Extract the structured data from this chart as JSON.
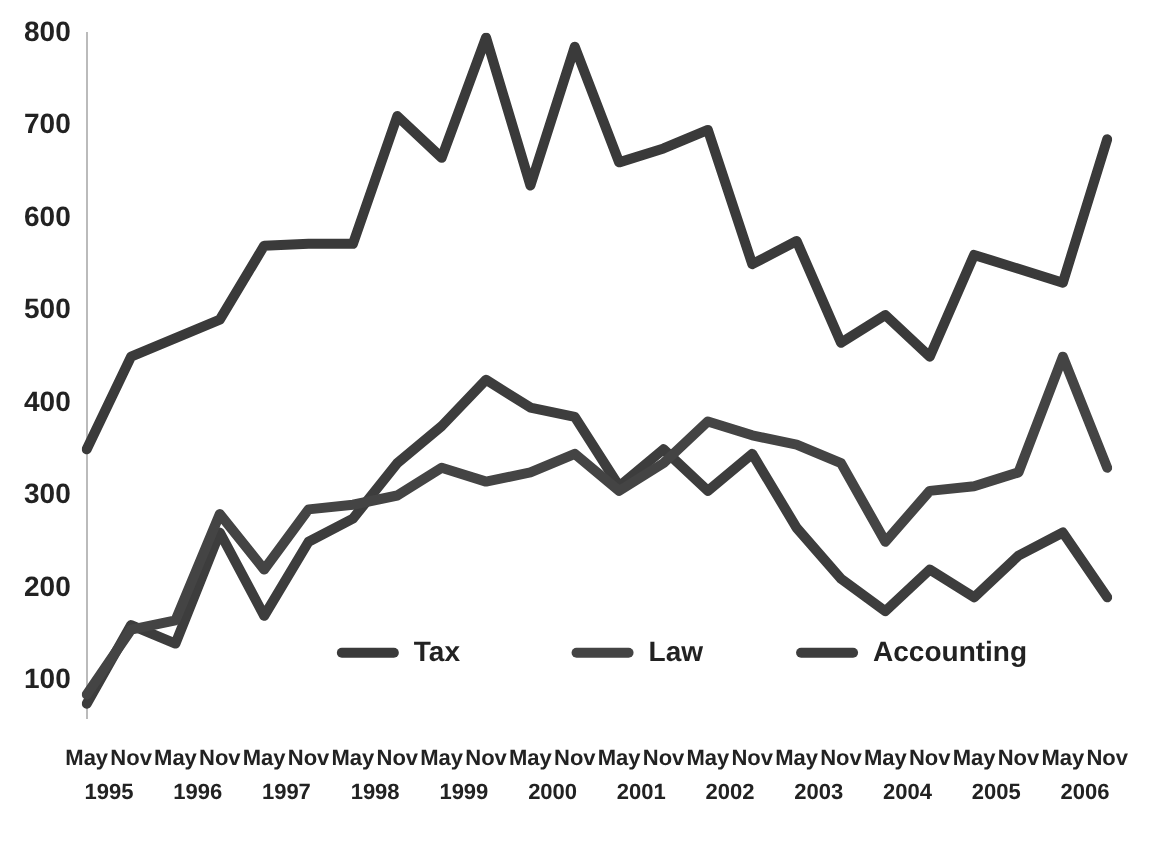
{
  "chart_data": {
    "type": "line",
    "categories": [
      "May",
      "Nov",
      "May",
      "Nov",
      "May",
      "Nov",
      "May",
      "Nov",
      "May",
      "Nov",
      "May",
      "Nov",
      "May",
      "Nov",
      "May",
      "Nov",
      "May",
      "Nov",
      "May",
      "Nov",
      "May",
      "Nov",
      "May",
      "Nov"
    ],
    "annotations": [
      "1995",
      "1996",
      "1997",
      "1998",
      "1999",
      "2000",
      "2001",
      "2002",
      "2003",
      "2004",
      "2005",
      "2006"
    ],
    "series": [
      {
        "name": "Tax",
        "color": "#3a3a3a",
        "values": [
          350,
          450,
          470,
          490,
          570,
          572,
          572,
          710,
          665,
          795,
          635,
          785,
          660,
          675,
          695,
          550,
          575,
          465,
          495,
          450,
          560,
          545,
          530,
          685
        ]
      },
      {
        "name": "Law",
        "color": "#444444",
        "values": [
          85,
          155,
          165,
          280,
          220,
          285,
          290,
          300,
          330,
          315,
          325,
          345,
          305,
          335,
          380,
          365,
          355,
          335,
          250,
          305,
          310,
          325,
          450,
          330
        ]
      },
      {
        "name": "Accounting",
        "color": "#3d3d3d",
        "values": [
          75,
          160,
          140,
          260,
          170,
          250,
          275,
          335,
          375,
          425,
          395,
          385,
          310,
          350,
          305,
          345,
          265,
          210,
          175,
          220,
          190,
          235,
          260,
          190
        ]
      }
    ],
    "ylim": [
      60,
      800
    ],
    "yticks": [
      100,
      200,
      300,
      400,
      500,
      600,
      700,
      800
    ],
    "grid": false,
    "legend": "bottom",
    "marker": "none",
    "line_style": "solid"
  }
}
